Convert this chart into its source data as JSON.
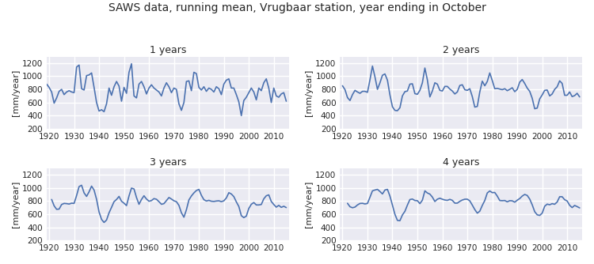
{
  "title": "SAWS data, running mean, Vrugbaar station, year ending in October",
  "ylabel": "[mm/year]",
  "line_color": "#4c72b0",
  "bg_color": "#eaeaf2",
  "grid_color": "#ffffff",
  "ylim": [
    200,
    1300
  ],
  "yticks": [
    200,
    400,
    600,
    800,
    1000,
    1200
  ],
  "start_year": 1919,
  "subplot_titles": [
    "1 years",
    "2 years",
    "3 years",
    "4 years"
  ],
  "raw_data": [
    880,
    830,
    760,
    590,
    670,
    770,
    800,
    720,
    760,
    780,
    760,
    750,
    1140,
    1170,
    810,
    790,
    1010,
    1020,
    1050,
    830,
    600,
    470,
    490,
    460,
    580,
    820,
    710,
    840,
    920,
    850,
    620,
    830,
    740,
    1060,
    1190,
    700,
    670,
    880,
    920,
    840,
    730,
    820,
    870,
    820,
    790,
    760,
    700,
    820,
    900,
    840,
    750,
    820,
    800,
    580,
    480,
    600,
    920,
    930,
    780,
    1060,
    1040,
    830,
    790,
    840,
    770,
    820,
    800,
    760,
    840,
    810,
    720,
    880,
    940,
    960,
    820,
    820,
    720,
    610,
    400,
    630,
    680,
    750,
    820,
    760,
    640,
    820,
    780,
    900,
    960,
    820,
    600,
    820,
    700,
    680,
    730,
    750,
    620
  ]
}
